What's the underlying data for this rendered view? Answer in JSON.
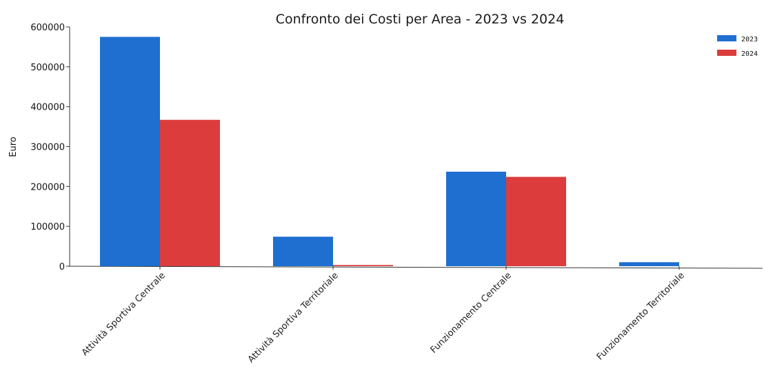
{
  "chart_data": {
    "type": "bar",
    "title": "Confronto dei Costi per Area - 2023 vs 2024",
    "xlabel": "",
    "ylabel": "Euro",
    "ylim": [
      0,
      600000
    ],
    "yticks": [
      0,
      100000,
      200000,
      300000,
      400000,
      500000,
      600000
    ],
    "ytick_labels": [
      "0",
      "100000",
      "200000",
      "300000",
      "400000",
      "500000",
      "600000"
    ],
    "categories": [
      "Attività Sportiva Centrale",
      "Attività Sportiva Territoriale",
      "Funzionamento Centrale",
      "Funzionamento Territoriale"
    ],
    "series": [
      {
        "name": "2023",
        "color": "#1f6fd0",
        "values": [
          575000,
          74000,
          237000,
          10000
        ]
      },
      {
        "name": "2024",
        "color": "#dc3c3c",
        "values": [
          367000,
          3000,
          224000,
          0
        ]
      }
    ],
    "grid": false,
    "legend_position": "top-right"
  }
}
